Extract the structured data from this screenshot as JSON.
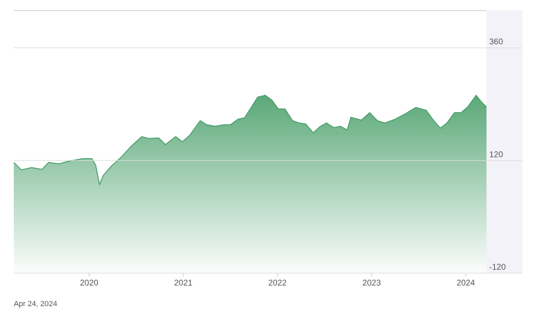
{
  "chart_data": {
    "type": "area",
    "date": "Apr 24, 2024",
    "x": [
      2019.2,
      2019.28,
      2019.39,
      2019.5,
      2019.57,
      2019.68,
      2019.79,
      2019.93,
      2020.03,
      2020.07,
      2020.11,
      2020.15,
      2020.23,
      2020.34,
      2020.45,
      2020.56,
      2020.63,
      2020.74,
      2020.81,
      2020.92,
      2020.99,
      2021.07,
      2021.18,
      2021.25,
      2021.34,
      2021.43,
      2021.5,
      2021.58,
      2021.65,
      2021.72,
      2021.79,
      2021.87,
      2021.94,
      2022.01,
      2022.08,
      2022.16,
      2022.23,
      2022.3,
      2022.38,
      2022.45,
      2022.52,
      2022.6,
      2022.67,
      2022.74,
      2022.78,
      2022.89,
      2022.98,
      2023.06,
      2023.14,
      2023.25,
      2023.36,
      2023.47,
      2023.58,
      2023.66,
      2023.73,
      2023.8,
      2023.88,
      2023.95,
      2024.02,
      2024.11,
      2024.17,
      2024.22
    ],
    "series": [
      {
        "color": "#3d9960",
        "values": [
          116,
          100,
          105,
          101,
          116,
          113,
          119,
          124,
          124,
          110,
          69,
          88,
          107,
          127,
          151,
          171,
          167,
          168,
          154,
          171,
          160,
          174,
          205,
          196,
          193,
          196,
          196,
          208,
          211,
          233,
          255,
          259,
          249,
          230,
          230,
          205,
          200,
          198,
          179,
          192,
          200,
          190,
          193,
          185,
          212,
          206,
          222,
          205,
          200,
          208,
          220,
          233,
          227,
          205,
          189,
          200,
          222,
          222,
          234,
          259,
          244,
          234
        ]
      }
    ],
    "xlim": [
      2019.2,
      2024.22
    ],
    "xticks": [
      2020,
      2021,
      2022,
      2023,
      2024
    ],
    "ylim": [
      -120,
      440
    ],
    "yticks": [
      -120,
      120,
      360
    ],
    "grid": true
  }
}
